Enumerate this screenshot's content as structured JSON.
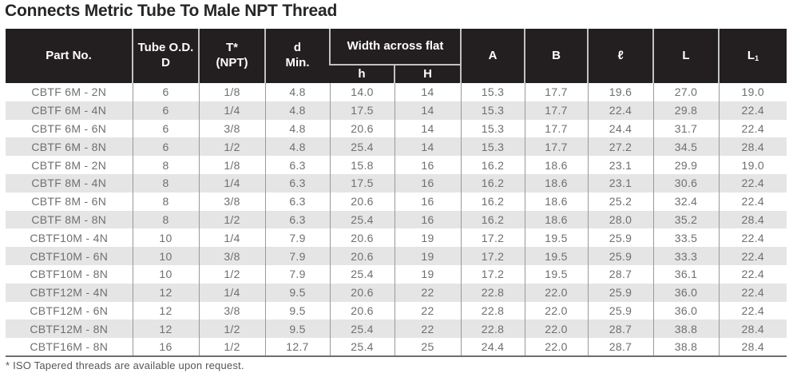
{
  "title": "Connects Metric Tube To Male NPT Thread",
  "footnote": "* ISO Tapered threads are available upon request.",
  "colors": {
    "header_bg": "#231f20",
    "header_text": "#ffffff",
    "row_stripe": "#e5e5e6",
    "data_text": "#6e6f72",
    "column_divider": "#97999c",
    "header_divider": "#bfc1c4",
    "table_bottom_border": "#6d6e71",
    "title_text": "#272525",
    "footnote_text": "#55565a"
  },
  "table": {
    "header": {
      "part_no": "Part No.",
      "tube_od_line1": "Tube O.D.",
      "tube_od_line2": "D",
      "t_line1": "T*",
      "t_line2": "(NPT)",
      "d_line1": "d",
      "d_line2": "Min.",
      "width_across_flat": "Width across flat",
      "h_small": "h",
      "h_large": "H",
      "col_a": "A",
      "col_b": "B",
      "col_l_script": "ℓ",
      "col_l": "L",
      "col_l1_base": "L",
      "col_l1_sub": "1"
    },
    "rows": [
      [
        "CBTF 6M - 2N",
        "6",
        "1/8",
        "4.8",
        "14.0",
        "14",
        "15.3",
        "17.7",
        "19.6",
        "27.0",
        "19.0"
      ],
      [
        "CBTF 6M - 4N",
        "6",
        "1/4",
        "4.8",
        "17.5",
        "14",
        "15.3",
        "17.7",
        "22.4",
        "29.8",
        "22.4"
      ],
      [
        "CBTF 6M - 6N",
        "6",
        "3/8",
        "4.8",
        "20.6",
        "14",
        "15.3",
        "17.7",
        "24.4",
        "31.7",
        "22.4"
      ],
      [
        "CBTF 6M - 8N",
        "6",
        "1/2",
        "4.8",
        "25.4",
        "14",
        "15.3",
        "17.7",
        "27.2",
        "34.5",
        "28.4"
      ],
      [
        "CBTF 8M - 2N",
        "8",
        "1/8",
        "6.3",
        "15.8",
        "16",
        "16.2",
        "18.6",
        "23.1",
        "29.9",
        "19.0"
      ],
      [
        "CBTF 8M - 4N",
        "8",
        "1/4",
        "6.3",
        "17.5",
        "16",
        "16.2",
        "18.6",
        "23.1",
        "30.6",
        "22.4"
      ],
      [
        "CBTF 8M - 6N",
        "8",
        "3/8",
        "6.3",
        "20.6",
        "16",
        "16.2",
        "18.6",
        "25.2",
        "32.4",
        "22.4"
      ],
      [
        "CBTF 8M - 8N",
        "8",
        "1/2",
        "6.3",
        "25.4",
        "16",
        "16.2",
        "18.6",
        "28.0",
        "35.2",
        "28.4"
      ],
      [
        "CBTF10M - 4N",
        "10",
        "1/4",
        "7.9",
        "20.6",
        "19",
        "17.2",
        "19.5",
        "25.9",
        "33.5",
        "22.4"
      ],
      [
        "CBTF10M - 6N",
        "10",
        "3/8",
        "7.9",
        "20.6",
        "19",
        "17.2",
        "19.5",
        "25.9",
        "33.3",
        "22.4"
      ],
      [
        "CBTF10M - 8N",
        "10",
        "1/2",
        "7.9",
        "25.4",
        "19",
        "17.2",
        "19.5",
        "28.7",
        "36.1",
        "22.4"
      ],
      [
        "CBTF12M - 4N",
        "12",
        "1/4",
        "9.5",
        "20.6",
        "22",
        "22.8",
        "22.0",
        "25.9",
        "36.0",
        "22.4"
      ],
      [
        "CBTF12M - 6N",
        "12",
        "3/8",
        "9.5",
        "20.6",
        "22",
        "22.8",
        "22.0",
        "25.9",
        "36.0",
        "22.4"
      ],
      [
        "CBTF12M - 8N",
        "12",
        "1/2",
        "9.5",
        "25.4",
        "22",
        "22.8",
        "22.0",
        "28.7",
        "38.8",
        "28.4"
      ],
      [
        "CBTF16M - 8N",
        "16",
        "1/2",
        "12.7",
        "25.4",
        "25",
        "24.4",
        "22.0",
        "28.7",
        "38.8",
        "28.4"
      ]
    ]
  }
}
